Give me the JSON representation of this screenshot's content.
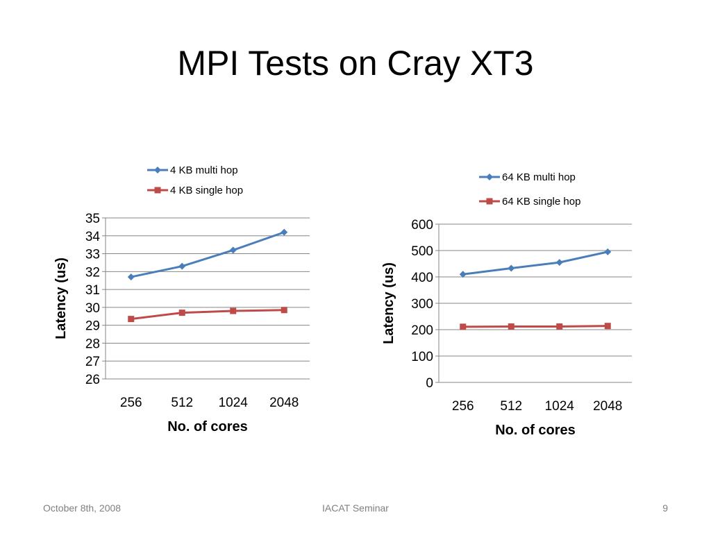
{
  "slide": {
    "title": "MPI Tests on Cray XT3"
  },
  "footer": {
    "date": "October 8th, 2008",
    "center": "IACAT Seminar",
    "page": "9"
  },
  "chart_data": [
    {
      "type": "line",
      "categories": [
        "256",
        "512",
        "1024",
        "2048"
      ],
      "series": [
        {
          "name": "4 KB multi hop",
          "values": [
            31.7,
            32.3,
            33.2,
            34.2
          ],
          "color": "#4a7ebb",
          "marker": "diamond"
        },
        {
          "name": "4 KB single hop",
          "values": [
            29.35,
            29.7,
            29.8,
            29.85
          ],
          "color": "#be4b48",
          "marker": "square"
        }
      ],
      "xlabel": "No. of cores",
      "ylabel": "Latency (us)",
      "ylim": [
        26,
        35
      ],
      "ystep": 1,
      "yticks": [
        "26",
        "27",
        "28",
        "29",
        "30",
        "31",
        "32",
        "33",
        "34",
        "35"
      ],
      "grid": true,
      "legend": "top"
    },
    {
      "type": "line",
      "categories": [
        "256",
        "512",
        "1024",
        "2048"
      ],
      "series": [
        {
          "name": "64 KB multi hop",
          "values": [
            410,
            433,
            455,
            495
          ],
          "color": "#4a7ebb",
          "marker": "diamond"
        },
        {
          "name": "64 KB single hop",
          "values": [
            211,
            212,
            212,
            214
          ],
          "color": "#be4b48",
          "marker": "square"
        }
      ],
      "xlabel": "No. of cores",
      "ylabel": "Latency (us)",
      "ylim": [
        0,
        600
      ],
      "ystep": 100,
      "yticks": [
        "0",
        "100",
        "200",
        "300",
        "400",
        "500",
        "600"
      ],
      "grid": true,
      "legend": "top"
    }
  ]
}
